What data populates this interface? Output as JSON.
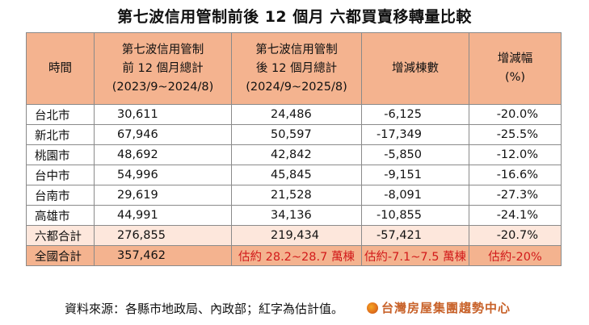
{
  "title": "第七波信用管制前後 12 個月  六都買賣移轉量比較",
  "headers": {
    "col1": "時間",
    "col2": [
      "第七波信用管制",
      "前 12 個月總計",
      "(2023/9~2024/8)"
    ],
    "col3": [
      "第七波信用管制",
      "後 12 個月總計",
      "(2024/9~2025/8)"
    ],
    "col4": "增減棟數",
    "col5": [
      "增減幅",
      "(%)"
    ]
  },
  "rows": [
    {
      "city": "台北市",
      "before": "30,611",
      "after": "24,486",
      "diff": "-6,125",
      "pct": "-20.0%"
    },
    {
      "city": "新北市",
      "before": "67,946",
      "after": "50,597",
      "diff": "-17,349",
      "pct": "-25.5%"
    },
    {
      "city": "桃園市",
      "before": "48,692",
      "after": "42,842",
      "diff": "-5,850",
      "pct": "-12.0%"
    },
    {
      "city": "台中市",
      "before": "54,996",
      "after": "45,845",
      "diff": "-9,151",
      "pct": "-16.6%"
    },
    {
      "city": "台南市",
      "before": "29,619",
      "after": "21,528",
      "diff": "-8,091",
      "pct": "-27.3%"
    },
    {
      "city": "高雄市",
      "before": "44,991",
      "after": "34,136",
      "diff": "-10,855",
      "pct": "-24.1%"
    }
  ],
  "summary": {
    "city": "六都合計",
    "before": "276,855",
    "after": "219,434",
    "diff": "-57,421",
    "pct": "-20.7%"
  },
  "national": {
    "city": "全國合計",
    "before": "357,462",
    "after": "估約 28.2~28.7 萬棟",
    "diff": "估約-7.1~7.5 萬棟",
    "pct": "估約-20%"
  },
  "source": "資料來源：各縣市地政局、內政部；紅字為估計值。",
  "logo": "台灣房屋集團趨勢中心",
  "colors": {
    "header_bg": "#f4b38f",
    "summary_bg": "#fde7dc",
    "estimate_text": "#d21b1b",
    "logo": "#c8622a"
  }
}
